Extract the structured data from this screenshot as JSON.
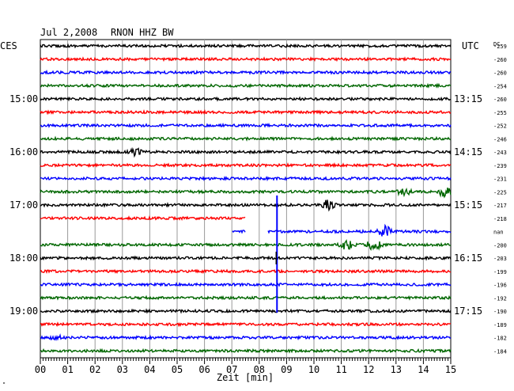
{
  "header": {
    "date": "Jul 2,2008",
    "station": "RNON HHZ BW",
    "left_zone": "CES",
    "right_zone": "UTC",
    "dc_label": "DC"
  },
  "chart_data": {
    "type": "line",
    "title": "Jul 2,2008   RNON HHZ BW",
    "xlabel": "Zeit [min]",
    "x_ticks": [
      "00",
      "01",
      "02",
      "03",
      "04",
      "05",
      "06",
      "07",
      "08",
      "09",
      "10",
      "11",
      "12",
      "13",
      "14",
      "15"
    ],
    "xlim": [
      0,
      15
    ],
    "trace_colors": [
      "#000000",
      "#ff0000",
      "#0000ff",
      "#006600"
    ],
    "left_time_labels": [
      {
        "row": 4,
        "text": "15:00"
      },
      {
        "row": 8,
        "text": "16:00"
      },
      {
        "row": 12,
        "text": "17:00"
      },
      {
        "row": 16,
        "text": "18:00"
      },
      {
        "row": 20,
        "text": "19:00"
      }
    ],
    "right_time_labels": [
      {
        "row": 4,
        "text": "13:15"
      },
      {
        "row": 8,
        "text": "14:15"
      },
      {
        "row": 12,
        "text": "15:15"
      },
      {
        "row": 16,
        "text": "16:15"
      },
      {
        "row": 20,
        "text": "17:15"
      }
    ],
    "dc_offsets": [
      "-259",
      "-260",
      "-260",
      "-254",
      "-260",
      "-255",
      "-252",
      "-246",
      "-243",
      "-239",
      "-231",
      "-225",
      "-217",
      "-218",
      "nan",
      "-200",
      "-203",
      "-199",
      "-196",
      "-192",
      "-190",
      "-189",
      "-182",
      "-184"
    ],
    "rows": 24,
    "events": [
      {
        "row": 8,
        "minute": 3.5,
        "amplitude": 5
      },
      {
        "row": 11,
        "minute": 13.3,
        "amplitude": 4
      },
      {
        "row": 11,
        "minute": 14.8,
        "amplitude": 8
      },
      {
        "row": 12,
        "minute": 10.5,
        "amplitude": 7
      },
      {
        "row": 14,
        "minute": 12.6,
        "amplitude": 7
      },
      {
        "row": 15,
        "minute": 11.2,
        "amplitude": 6
      },
      {
        "row": 15,
        "minute": 12.2,
        "amplitude": 7
      },
      {
        "row": 22,
        "minute": 0.6,
        "amplitude": 2
      }
    ],
    "gaps": [
      {
        "row": 13,
        "from": 7.5,
        "to": 15
      },
      {
        "row": 14,
        "from": 0,
        "to": 7.0
      },
      {
        "row": 14,
        "from": 7.5,
        "to": 8.3
      }
    ],
    "spike_column_minute": 8.65,
    "spike_rows": [
      12,
      13,
      14,
      15,
      16,
      17,
      18,
      19,
      20
    ]
  },
  "footnote": "\""
}
